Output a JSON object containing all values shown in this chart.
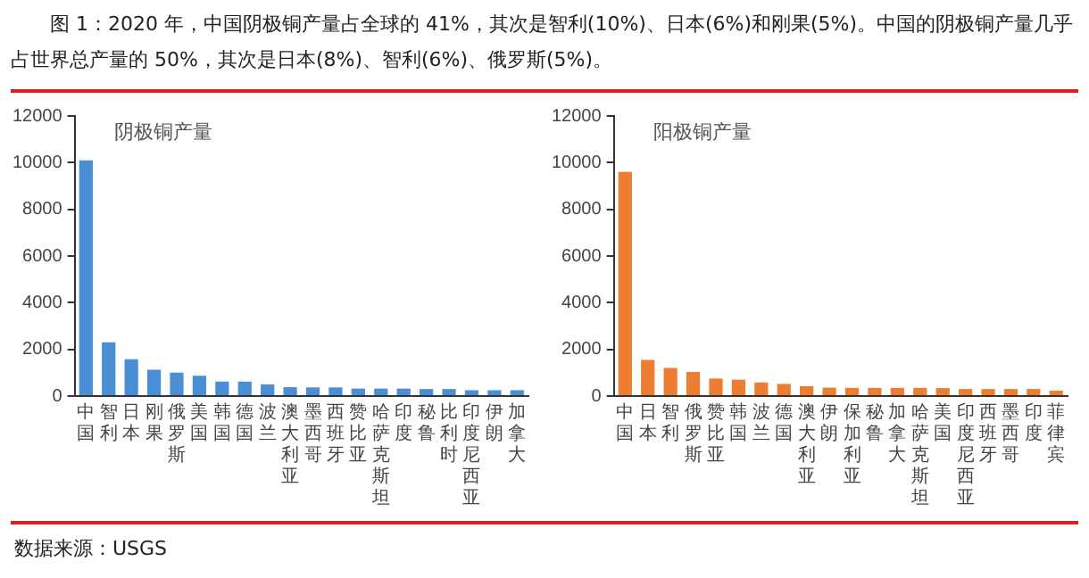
{
  "chart_data": [
    {
      "type": "bar",
      "title": "阴极铜产量",
      "annotations": [
        "图 1：2020 年，中国阴极铜产量占全球的 41%，其次是智利(10%)、日本(6%)和刚果(5%)。中国的阴极铜产量几乎占世界总产量的 50%，其次是日本(8%)、智利(6%)、俄罗斯(5%)。",
        "数据来源：USGS"
      ],
      "categories": [
        "中国",
        "智利",
        "日本",
        "刚果",
        "俄罗斯",
        "美国",
        "韩国",
        "德国",
        "波兰",
        "澳大利亚",
        "墨西哥",
        "西班牙",
        "赞比亚",
        "哈萨克斯坦",
        "印度",
        "秘鲁",
        "比利时",
        "印度尼西亚",
        "伊朗",
        "加拿大"
      ],
      "values": [
        10100,
        2300,
        1580,
        1130,
        1000,
        870,
        620,
        620,
        500,
        380,
        370,
        370,
        320,
        320,
        320,
        300,
        300,
        250,
        250,
        250
      ],
      "color": "#4a8fd6",
      "ylim": [
        0,
        12000
      ],
      "yticks": [
        0,
        2000,
        4000,
        6000,
        8000,
        10000,
        12000
      ],
      "grid": false,
      "legend": false
    },
    {
      "type": "bar",
      "title": "阳极铜产量",
      "categories": [
        "中国",
        "日本",
        "智利",
        "俄罗斯",
        "赞比亚",
        "韩国",
        "波兰",
        "德国",
        "澳大利亚",
        "伊朗",
        "保加利亚",
        "秘鲁",
        "加拿大",
        "哈萨克斯坦",
        "美国",
        "印度尼西亚",
        "西班牙",
        "墨西哥",
        "印度",
        "菲律宾"
      ],
      "values": [
        9600,
        1550,
        1200,
        1030,
        750,
        700,
        580,
        520,
        420,
        360,
        350,
        350,
        350,
        350,
        340,
        300,
        300,
        300,
        300,
        230
      ],
      "color": "#ed7d31",
      "ylim": [
        0,
        12000
      ],
      "yticks": [
        0,
        2000,
        4000,
        6000,
        8000,
        10000,
        12000
      ],
      "grid": false,
      "legend": false
    }
  ]
}
